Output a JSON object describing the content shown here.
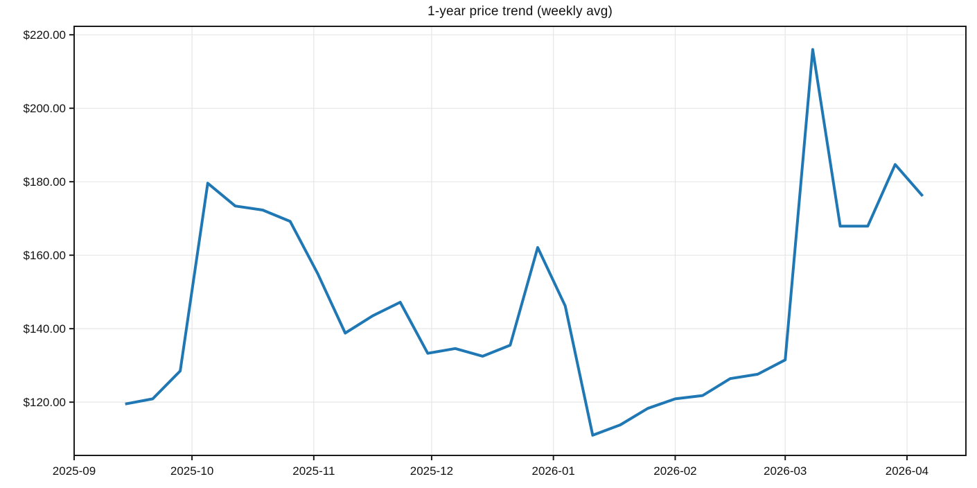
{
  "chart_data": {
    "type": "line",
    "title": "1-year price trend (weekly avg)",
    "xlabel": "",
    "ylabel": "",
    "grid": true,
    "legend_position": "none",
    "x_tick_labels": [
      "2025-09",
      "2025-10",
      "2025-11",
      "2025-12",
      "2026-01",
      "2026-02",
      "2026-03",
      "2026-04"
    ],
    "y_tick_labels": [
      "$220.00",
      "$200.00",
      "$180.00",
      "$160.00",
      "$140.00",
      "$120.00"
    ],
    "y_tick_values": [
      220,
      200,
      180,
      160,
      140,
      120
    ],
    "ylim": [
      105.5,
      222.3
    ],
    "xlim": [
      "2025-09-01",
      "2026-04-16"
    ],
    "colors": {
      "line": "#1f77b4",
      "grid": "#e6e6e6",
      "spine": "#1a1a1a",
      "text": "#111111",
      "background": "#ffffff"
    },
    "series": [
      {
        "name": "weekly average price",
        "color": "#1f77b4",
        "x": [
          "2025-09-14",
          "2025-09-21",
          "2025-09-28",
          "2025-10-05",
          "2025-10-12",
          "2025-10-19",
          "2025-10-26",
          "2025-11-02",
          "2025-11-09",
          "2025-11-16",
          "2025-11-23",
          "2025-11-30",
          "2025-12-07",
          "2025-12-14",
          "2025-12-21",
          "2025-12-28",
          "2026-01-04",
          "2026-01-11",
          "2026-01-18",
          "2026-01-25",
          "2026-02-01",
          "2026-02-08",
          "2026-02-15",
          "2026-02-22",
          "2026-03-01",
          "2026-03-08",
          "2026-03-15",
          "2026-03-22",
          "2026-03-29",
          "2026-04-05"
        ],
        "values": [
          119.5,
          120.9,
          128.5,
          179.6,
          173.4,
          172.3,
          169.2,
          155.0,
          138.8,
          143.5,
          147.2,
          133.3,
          134.6,
          132.5,
          135.5,
          162.1,
          146.2,
          111.0,
          113.8,
          118.3,
          120.9,
          121.8,
          126.4,
          127.6,
          131.5,
          216.0,
          167.9,
          167.9,
          184.7,
          176.1
        ]
      }
    ]
  }
}
